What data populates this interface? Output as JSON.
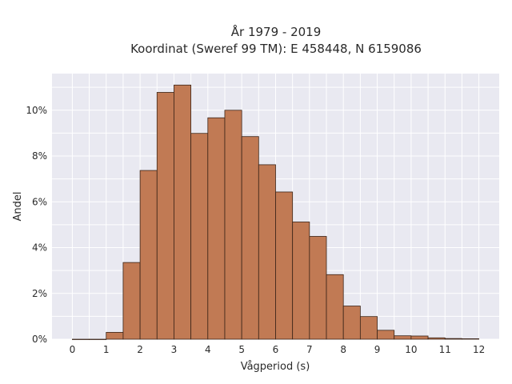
{
  "chart_data": {
    "type": "bar",
    "title_line1": "År 1979 - 2019",
    "title_line2": "Koordinat (Sweref 99 TM): E 458448, N 6159086",
    "xlabel": "Vågperiod (s)",
    "ylabel": "Andel",
    "bin_width": 0.5,
    "bin_starts": [
      0,
      0.5,
      1,
      1.5,
      2,
      2.5,
      3,
      3.5,
      4,
      4.5,
      5,
      5.5,
      6,
      6.5,
      7,
      7.5,
      8,
      8.5,
      9,
      9.5,
      10,
      10.5,
      11,
      11.5
    ],
    "values": [
      0.0,
      0.0,
      0.3,
      3.35,
      7.37,
      10.78,
      11.1,
      8.99,
      9.67,
      10.0,
      8.85,
      7.62,
      6.43,
      5.12,
      4.49,
      2.82,
      1.45,
      0.99,
      0.39,
      0.15,
      0.14,
      0.06,
      0.03,
      0.02
    ],
    "xlim": [
      -0.6,
      12.6
    ],
    "ylim": [
      0,
      11.6
    ],
    "x_ticks": [
      0,
      1,
      2,
      3,
      4,
      5,
      6,
      7,
      8,
      9,
      10,
      11,
      12
    ],
    "y_ticks": [
      0,
      2,
      4,
      6,
      8,
      10
    ],
    "y_tick_suffix": "%",
    "grid": true,
    "bar_color": "#c17a54",
    "bar_edge_color": "#3a2418",
    "plot_background": "#e9e9f1",
    "legend": "none"
  }
}
